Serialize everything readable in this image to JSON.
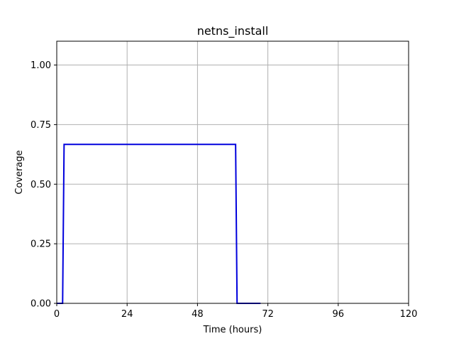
{
  "chart_data": {
    "type": "line",
    "title": "netns_install",
    "xlabel": "Time (hours)",
    "ylabel": "Coverage",
    "xlim": [
      0,
      120
    ],
    "ylim": [
      0,
      1.1
    ],
    "xticks": [
      0,
      24,
      48,
      72,
      96,
      120
    ],
    "xtick_labels": [
      "0",
      "24",
      "48",
      "72",
      "96",
      "120"
    ],
    "yticks": [
      0,
      0.25,
      0.5,
      0.75,
      1.0
    ],
    "ytick_labels": [
      "0.00",
      "0.25",
      "0.50",
      "0.75",
      "1.00"
    ],
    "grid": true,
    "series": [
      {
        "color": "#0000dd",
        "x": [
          0,
          2,
          2.5,
          61,
          61.5,
          69.5
        ],
        "y": [
          0,
          0,
          0.667,
          0.667,
          0,
          0
        ]
      }
    ]
  }
}
